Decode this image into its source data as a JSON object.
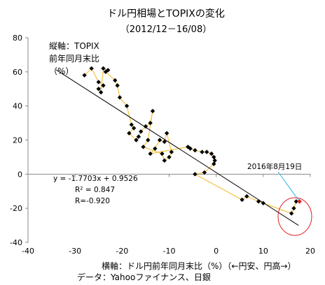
{
  "chart_data": {
    "type": "scatter",
    "title": "ドル円相場とTOPIXの変化",
    "subtitle": "（2012/12－16/08）",
    "ylabel_lines": [
      "縦軸：TOPIX",
      "前年同月末比",
      "（%）"
    ],
    "xlabel": "横軸：ドル円前年同月末比（%）（←円安、円高→）",
    "source": "データ：Yahooファイナンス、日銀",
    "xlim": [
      -40,
      20
    ],
    "ylim": [
      -40,
      80
    ],
    "xticks": [
      -40,
      -30,
      -20,
      -10,
      0,
      10,
      20
    ],
    "yticks": [
      -40,
      -20,
      0,
      20,
      40,
      60,
      80
    ],
    "xtick_labels": [
      "-40",
      "-30",
      "-20",
      "-10",
      "0",
      "10",
      "20"
    ],
    "ytick_labels": [
      "-40",
      "-20",
      "0",
      "20",
      "40",
      "60",
      "80"
    ],
    "series": [
      {
        "color": "#000000",
        "connector_color": "#f5c342",
        "x": [
          -28,
          -26.5,
          -25,
          -24,
          -25,
          -24.5,
          -24,
          -23,
          -23.5,
          -21.5,
          -21,
          -20.5,
          -19,
          -18,
          -17.5,
          -18.5,
          -17,
          -16.5,
          -16,
          -15,
          -14,
          -13.5,
          -14.5,
          -15.5,
          -11.5,
          -11,
          -10,
          -9.5,
          -10.5,
          -11,
          -12,
          -13,
          -14,
          -6,
          -5.5,
          -4.5,
          -3,
          -2,
          -1,
          -0.5,
          -0.3,
          -0.5,
          -2.5,
          -4.5,
          5.5,
          6.5,
          9,
          10,
          16,
          16.5,
          17
        ],
        "y": [
          58,
          62,
          54,
          52,
          50,
          48,
          62,
          61,
          60,
          55,
          52,
          45,
          40,
          29,
          27,
          24,
          20,
          22,
          25,
          28,
          30,
          37,
          20,
          16,
          12,
          8,
          10,
          13,
          24,
          19,
          20,
          15,
          12,
          16,
          15,
          14,
          13,
          13,
          12,
          10,
          8,
          6,
          1,
          0,
          -15,
          -13,
          -16,
          -17,
          -23,
          -20,
          -16
        ]
      }
    ],
    "highlight_point": {
      "x": 17.7,
      "y": -16,
      "color": "#e02020"
    },
    "trendline": {
      "slope": -1.7703,
      "intercept": 0.9526,
      "x_from": -34,
      "x_to": 17.5
    },
    "annotations": {
      "equation": "y = -1.7703x + 0.9526",
      "r2": "R² = 0.847",
      "r": "R=-0.920",
      "date_label": "2016年8月19日"
    }
  }
}
